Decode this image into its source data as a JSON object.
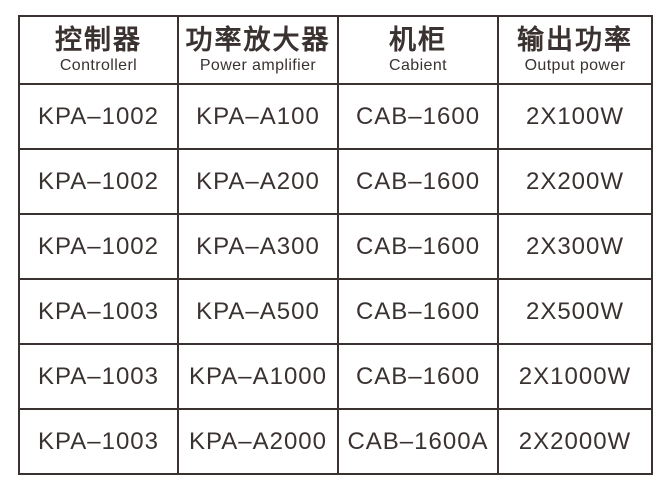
{
  "colors": {
    "background": "#ffffff",
    "border": "#3a3230",
    "text": "#3a3230"
  },
  "table": {
    "columns": [
      {
        "zh": "控制器",
        "en": "Controllerl"
      },
      {
        "zh": "功率放大器",
        "en": "Power amplifier"
      },
      {
        "zh": "机柜",
        "en": "Cabient"
      },
      {
        "zh": "输出功率",
        "en": "Output power"
      }
    ],
    "rows": [
      [
        "KPA–1002",
        "KPA–A100",
        "CAB–1600",
        "2X100W"
      ],
      [
        "KPA–1002",
        "KPA–A200",
        "CAB–1600",
        "2X200W"
      ],
      [
        "KPA–1002",
        "KPA–A300",
        "CAB–1600",
        "2X300W"
      ],
      [
        "KPA–1003",
        "KPA–A500",
        "CAB–1600",
        "2X500W"
      ],
      [
        "KPA–1003",
        "KPA–A1000",
        "CAB–1600",
        "2X1000W"
      ],
      [
        "KPA–1003",
        "KPA–A2000",
        "CAB–1600A",
        "2X2000W"
      ]
    ]
  }
}
